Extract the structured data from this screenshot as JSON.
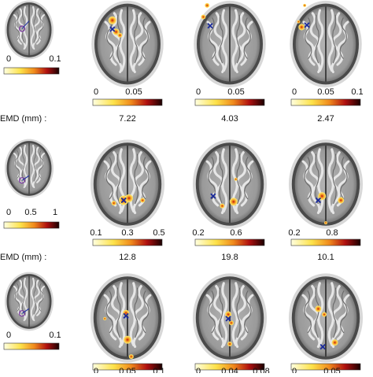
{
  "figure": {
    "emd_label": "EMD (mm) :",
    "rows": [
      {
        "reference_ticks": [
          "0",
          "0.1"
        ],
        "panels": [
          {
            "ticks": [
              "0",
              "0.05"
            ],
            "emd": "7.22"
          },
          {
            "ticks": [
              "0",
              "0.05"
            ],
            "emd": "4.03"
          },
          {
            "ticks": [
              "0",
              "0.05",
              "0.1"
            ],
            "emd": "2.47"
          }
        ]
      },
      {
        "reference_ticks": [
          "0",
          "0.5",
          "1"
        ],
        "panels": [
          {
            "ticks": [
              "0.1",
              "0.3",
              "0.5"
            ],
            "emd": "12.8"
          },
          {
            "ticks": [
              "0.2",
              "0.6"
            ],
            "emd": "19.8"
          },
          {
            "ticks": [
              "0.2",
              "0.8"
            ],
            "emd": "10.1"
          }
        ]
      },
      {
        "reference_ticks": [
          "0",
          "0.1"
        ],
        "panels": [
          {
            "ticks": [
              "0",
              "0.05",
              "0.1"
            ]
          },
          {
            "ticks": [
              "0",
              "0.04",
              "0.08"
            ]
          },
          {
            "ticks": [
              "0",
              "0.05"
            ]
          }
        ]
      }
    ]
  }
}
